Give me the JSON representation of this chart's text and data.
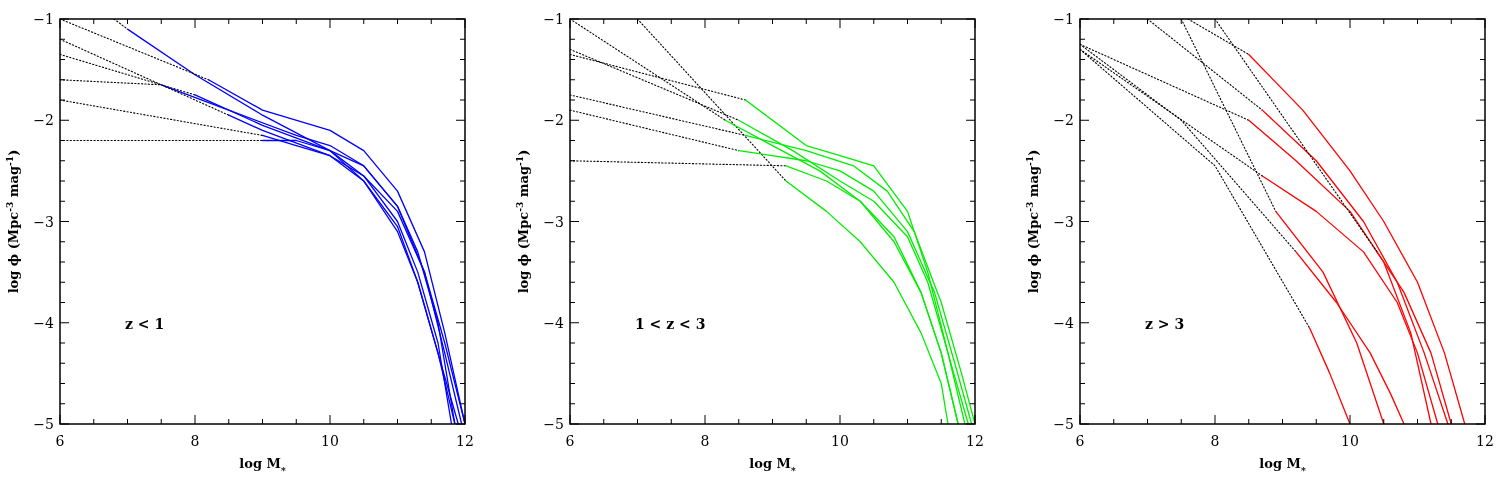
{
  "chart_data": [
    {
      "type": "line",
      "xlabel": "log M$_{*}$",
      "ylabel": "log ϕ (Mpc$^{-3}$ mag$^{-1}$)",
      "annotations": [
        "z < 1"
      ],
      "xlim": [
        6,
        12
      ],
      "ylim": [
        -5,
        -1
      ],
      "xticks": [
        6,
        {
          "value": 6.5,
          "label": null
        },
        {
          "value": 7,
          "label": null
        },
        {
          "value": 7.5,
          "label": null
        },
        8,
        {
          "value": 8.5,
          "label": null
        },
        {
          "value": 9,
          "label": null
        },
        {
          "value": 9.5,
          "label": null
        },
        10,
        {
          "value": 10.5,
          "label": null
        },
        {
          "value": 11,
          "label": null
        },
        {
          "value": 11.5,
          "label": null
        },
        12
      ],
      "yticks": [
        -5,
        {
          "value": -4.8,
          "label": null
        },
        {
          "value": -4.6,
          "label": null
        },
        {
          "value": -4.4,
          "label": null
        },
        {
          "value": -4.2,
          "label": null
        },
        -4,
        {
          "value": -3.8,
          "label": null
        },
        {
          "value": -3.6,
          "label": null
        },
        {
          "value": -3.4,
          "label": null
        },
        {
          "value": -3.2,
          "label": null
        },
        -3,
        {
          "value": -2.8,
          "label": null
        },
        {
          "value": -2.6,
          "label": null
        },
        {
          "value": -2.4,
          "label": null
        },
        {
          "value": -2.2,
          "label": null
        },
        -2,
        {
          "value": -1.8,
          "label": null
        },
        {
          "value": -1.6,
          "label": null
        },
        {
          "value": -1.4,
          "label": null
        },
        {
          "value": -1.2,
          "label": null
        },
        -1
      ],
      "series": [
        {
          "color": "#000000",
          "line_style": "dotted",
          "x": [
            6.8,
            7
          ],
          "values": [
            -1.0,
            -1.1
          ]
        },
        {
          "color": "#0000ff",
          "line_style": "solid",
          "x": [
            7,
            8,
            9,
            10,
            10.5,
            11,
            11.3,
            11.6,
            11.9
          ],
          "values": [
            -1.1,
            -1.55,
            -1.95,
            -2.3,
            -2.6,
            -3.1,
            -3.6,
            -4.3,
            -5
          ]
        },
        {
          "color": "#000000",
          "line_style": "dotted",
          "x": [
            6,
            8
          ],
          "values": [
            -1.35,
            -1.75
          ]
        },
        {
          "color": "#0000ff",
          "line_style": "solid",
          "x": [
            8,
            9,
            10,
            10.5,
            11,
            11.3,
            11.6,
            11.8
          ],
          "values": [
            -1.75,
            -2.05,
            -2.3,
            -2.55,
            -3.0,
            -3.5,
            -4.2,
            -5
          ]
        },
        {
          "color": "#000000",
          "line_style": "dotted",
          "x": [
            6,
            7.5
          ],
          "values": [
            -1.6,
            -1.65
          ]
        },
        {
          "color": "#0000ff",
          "line_style": "solid",
          "x": [
            7.5,
            8.5,
            9.5,
            10,
            10.5,
            11,
            11.4,
            11.7,
            11.95
          ],
          "values": [
            -1.65,
            -1.9,
            -2.15,
            -2.25,
            -2.45,
            -2.85,
            -3.5,
            -4.3,
            -5
          ]
        },
        {
          "color": "#000000",
          "line_style": "dotted",
          "x": [
            6,
            9
          ],
          "values": [
            -2.2,
            -2.2
          ]
        },
        {
          "color": "#0000ff",
          "line_style": "solid",
          "x": [
            9,
            9.5,
            10,
            10.5,
            11,
            11.3,
            11.6,
            11.85
          ],
          "values": [
            -2.2,
            -2.2,
            -2.3,
            -2.45,
            -2.85,
            -3.3,
            -4.0,
            -5
          ]
        },
        {
          "color": "#000000",
          "line_style": "dotted",
          "x": [
            6,
            9
          ],
          "values": [
            -1.8,
            -2.15
          ]
        },
        {
          "color": "#0000ff",
          "line_style": "solid",
          "x": [
            9,
            9.5,
            10,
            10.5,
            11,
            11.4,
            11.7,
            12
          ],
          "values": [
            -2.15,
            -2.25,
            -2.35,
            -2.55,
            -2.9,
            -3.5,
            -4.2,
            -5
          ]
        },
        {
          "color": "#000000",
          "line_style": "dotted",
          "x": [
            6,
            8.2
          ],
          "values": [
            -1.0,
            -1.6
          ]
        },
        {
          "color": "#0000ff",
          "line_style": "solid",
          "x": [
            8.2,
            9,
            10,
            10.5,
            11,
            11.4,
            11.7,
            12
          ],
          "values": [
            -1.6,
            -1.9,
            -2.1,
            -2.3,
            -2.7,
            -3.3,
            -4.1,
            -5
          ]
        },
        {
          "color": "#000000",
          "line_style": "dotted",
          "x": [
            6,
            8.5
          ],
          "values": [
            -1.2,
            -1.95
          ]
        },
        {
          "color": "#0000ff",
          "line_style": "solid",
          "x": [
            8.5,
            9,
            10,
            10.5,
            11,
            11.3,
            11.6,
            11.85
          ],
          "values": [
            -1.95,
            -2.1,
            -2.35,
            -2.6,
            -3.05,
            -3.6,
            -4.3,
            -5
          ]
        }
      ]
    },
    {
      "type": "line",
      "xlabel": "log M$_{*}$",
      "ylabel": "log ϕ (Mpc$^{-3}$ mag$^{-1}$)",
      "annotations": [
        "1 < z < 3"
      ],
      "xlim": [
        6,
        12
      ],
      "ylim": [
        -5,
        -1
      ],
      "xticks": [
        6,
        {
          "value": 6.5,
          "label": null
        },
        {
          "value": 7,
          "label": null
        },
        {
          "value": 7.5,
          "label": null
        },
        8,
        {
          "value": 8.5,
          "label": null
        },
        {
          "value": 9,
          "label": null
        },
        {
          "value": 9.5,
          "label": null
        },
        10,
        {
          "value": 10.5,
          "label": null
        },
        {
          "value": 11,
          "label": null
        },
        {
          "value": 11.5,
          "label": null
        },
        12
      ],
      "yticks": [
        -5,
        {
          "value": -4.8,
          "label": null
        },
        {
          "value": -4.6,
          "label": null
        },
        {
          "value": -4.4,
          "label": null
        },
        {
          "value": -4.2,
          "label": null
        },
        -4,
        {
          "value": -3.8,
          "label": null
        },
        {
          "value": -3.6,
          "label": null
        },
        {
          "value": -3.4,
          "label": null
        },
        {
          "value": -3.2,
          "label": null
        },
        -3,
        {
          "value": -2.8,
          "label": null
        },
        {
          "value": -2.6,
          "label": null
        },
        {
          "value": -2.4,
          "label": null
        },
        {
          "value": -2.2,
          "label": null
        },
        -2,
        {
          "value": -1.8,
          "label": null
        },
        {
          "value": -1.6,
          "label": null
        },
        {
          "value": -1.4,
          "label": null
        },
        {
          "value": -1.2,
          "label": null
        },
        -1
      ],
      "series": [
        {
          "color": "#000000",
          "line_style": "dotted",
          "x": [
            6,
            8.6
          ],
          "values": [
            -1.35,
            -1.8
          ]
        },
        {
          "color": "#00ee00",
          "line_style": "solid",
          "x": [
            8.6,
            9.5,
            10,
            10.5,
            11,
            11.3,
            11.6,
            11.85
          ],
          "values": [
            -1.8,
            -2.25,
            -2.35,
            -2.45,
            -2.9,
            -3.5,
            -4.3,
            -5
          ]
        },
        {
          "color": "#000000",
          "line_style": "dotted",
          "x": [
            6,
            9.2
          ],
          "values": [
            -2.4,
            -2.45
          ]
        },
        {
          "color": "#00ee00",
          "line_style": "solid",
          "x": [
            9.2,
            9.8,
            10.3,
            10.8,
            11.2,
            11.5,
            11.75
          ],
          "values": [
            -2.45,
            -2.6,
            -2.8,
            -3.15,
            -3.7,
            -4.3,
            -5
          ]
        },
        {
          "color": "#000000",
          "line_style": "dotted",
          "x": [
            7,
            9.2
          ],
          "values": [
            -1.0,
            -2.6
          ]
        },
        {
          "color": "#00ee00",
          "line_style": "solid",
          "x": [
            9.2,
            9.8,
            10.3,
            10.8,
            11.2,
            11.5,
            11.6
          ],
          "values": [
            -2.6,
            -2.9,
            -3.2,
            -3.6,
            -4.1,
            -4.6,
            -5
          ]
        },
        {
          "color": "#000000",
          "line_style": "dotted",
          "x": [
            6,
            8.5
          ],
          "values": [
            -1.9,
            -2.3
          ]
        },
        {
          "color": "#00ee00",
          "line_style": "solid",
          "x": [
            8.5,
            9.5,
            10,
            10.5,
            11,
            11.4,
            11.7,
            11.95
          ],
          "values": [
            -2.3,
            -2.4,
            -2.5,
            -2.7,
            -3.1,
            -3.7,
            -4.4,
            -5
          ]
        },
        {
          "color": "#000000",
          "line_style": "dotted",
          "x": [
            6,
            8.3
          ],
          "values": [
            -1.0,
            -2.0
          ]
        },
        {
          "color": "#00ee00",
          "line_style": "solid",
          "x": [
            8.3,
            9,
            9.7,
            10.3,
            10.8,
            11.2,
            11.5,
            11.75
          ],
          "values": [
            -2.0,
            -2.25,
            -2.5,
            -2.8,
            -3.2,
            -3.7,
            -4.3,
            -5
          ]
        },
        {
          "color": "#000000",
          "line_style": "dotted",
          "x": [
            6,
            8.5
          ],
          "values": [
            -1.3,
            -2.0
          ]
        },
        {
          "color": "#00ee00",
          "line_style": "solid",
          "x": [
            8.5,
            9.3,
            10,
            10.5,
            11,
            11.3,
            11.6,
            11.9
          ],
          "values": [
            -2.0,
            -2.3,
            -2.6,
            -2.8,
            -3.15,
            -3.6,
            -4.3,
            -5
          ]
        },
        {
          "color": "#000000",
          "line_style": "dotted",
          "x": [
            6,
            8.6
          ],
          "values": [
            -1.75,
            -2.15
          ]
        },
        {
          "color": "#00ee00",
          "line_style": "solid",
          "x": [
            8.6,
            9.5,
            10.2,
            10.7,
            11.1,
            11.5,
            11.8,
            12
          ],
          "values": [
            -2.15,
            -2.3,
            -2.45,
            -2.7,
            -3.1,
            -3.8,
            -4.5,
            -5
          ]
        }
      ]
    },
    {
      "type": "line",
      "xlabel": "log M$_{*}$",
      "ylabel": "log ϕ (Mpc$^{-3}$ mag$^{-1}$)",
      "annotations": [
        "z > 3"
      ],
      "xlim": [
        6,
        12
      ],
      "ylim": [
        -5,
        -1
      ],
      "xticks": [
        6,
        {
          "value": 6.5,
          "label": null
        },
        {
          "value": 7,
          "label": null
        },
        {
          "value": 7.5,
          "label": null
        },
        8,
        {
          "value": 8.5,
          "label": null
        },
        {
          "value": 9,
          "label": null
        },
        {
          "value": 9.5,
          "label": null
        },
        10,
        {
          "value": 10.5,
          "label": null
        },
        {
          "value": 11,
          "label": null
        },
        {
          "value": 11.5,
          "label": null
        },
        12
      ],
      "yticks": [
        -5,
        {
          "value": -4.8,
          "label": null
        },
        {
          "value": -4.6,
          "label": null
        },
        {
          "value": -4.4,
          "label": null
        },
        {
          "value": -4.2,
          "label": null
        },
        -4,
        {
          "value": -3.8,
          "label": null
        },
        {
          "value": -3.6,
          "label": null
        },
        {
          "value": -3.4,
          "label": null
        },
        {
          "value": -3.2,
          "label": null
        },
        -3,
        {
          "value": -2.8,
          "label": null
        },
        {
          "value": -2.6,
          "label": null
        },
        {
          "value": -2.4,
          "label": null
        },
        {
          "value": -2.2,
          "label": null
        },
        -2,
        {
          "value": -1.8,
          "label": null
        },
        {
          "value": -1.6,
          "label": null
        },
        {
          "value": -1.4,
          "label": null
        },
        {
          "value": -1.2,
          "label": null
        },
        -1
      ],
      "series": [
        {
          "color": "#000000",
          "line_style": "dotted",
          "x": [
            7.6,
            8.5
          ],
          "values": [
            -1.0,
            -1.35
          ]
        },
        {
          "color": "#ff0000",
          "line_style": "solid",
          "x": [
            8.5,
            9.3,
            10,
            10.5,
            11,
            11.4,
            11.7
          ],
          "values": [
            -1.35,
            -1.9,
            -2.5,
            -3.0,
            -3.6,
            -4.3,
            -5
          ]
        },
        {
          "color": "#000000",
          "line_style": "dotted",
          "x": [
            7,
            8.7
          ],
          "values": [
            -1.0,
            -1.9
          ]
        },
        {
          "color": "#ff0000",
          "line_style": "solid",
          "x": [
            8.7,
            9.5,
            10.2,
            10.7,
            11.1,
            11.45
          ],
          "values": [
            -1.9,
            -2.4,
            -3.0,
            -3.6,
            -4.3,
            -5
          ]
        },
        {
          "color": "#000000",
          "line_style": "dotted",
          "x": [
            6,
            8.5
          ],
          "values": [
            -1.25,
            -2.0
          ]
        },
        {
          "color": "#ff0000",
          "line_style": "solid",
          "x": [
            8.5,
            9.2,
            10,
            10.5,
            10.9,
            11.2
          ],
          "values": [
            -2.0,
            -2.4,
            -2.9,
            -3.4,
            -4.1,
            -5
          ]
        },
        {
          "color": "#000000",
          "line_style": "dotted",
          "x": [
            6,
            8.7
          ],
          "values": [
            -1.3,
            -2.55
          ]
        },
        {
          "color": "#ff0000",
          "line_style": "solid",
          "x": [
            8.7,
            9.5,
            10.2,
            10.7,
            11.0,
            11.3
          ],
          "values": [
            -2.55,
            -2.9,
            -3.3,
            -3.8,
            -4.3,
            -5
          ]
        },
        {
          "color": "#000000",
          "line_style": "dotted",
          "x": [
            6,
            7.5,
            9.2
          ],
          "values": [
            -1.25,
            -2.0,
            -3.3
          ]
        },
        {
          "color": "#ff0000",
          "line_style": "solid",
          "x": [
            9.2,
            9.8,
            10.3,
            10.6,
            10.8
          ],
          "values": [
            -3.3,
            -3.8,
            -4.3,
            -4.7,
            -5
          ]
        },
        {
          "color": "#000000",
          "line_style": "dotted",
          "x": [
            6,
            8,
            9.4
          ],
          "values": [
            -1.3,
            -2.45,
            -4.05
          ]
        },
        {
          "color": "#ff0000",
          "line_style": "solid",
          "x": [
            9.4,
            9.7,
            10
          ],
          "values": [
            -4.05,
            -4.5,
            -5
          ]
        },
        {
          "color": "#000000",
          "line_style": "dotted",
          "x": [
            7.5,
            8.9
          ],
          "values": [
            -1.0,
            -2.9
          ]
        },
        {
          "color": "#ff0000",
          "line_style": "solid",
          "x": [
            8.9,
            9.6,
            10.1,
            10.5
          ],
          "values": [
            -2.9,
            -3.5,
            -4.2,
            -5
          ]
        },
        {
          "color": "#000000",
          "line_style": "dotted",
          "x": [
            8,
            10.4
          ],
          "values": [
            -1.0,
            -3.3
          ]
        },
        {
          "color": "#ff0000",
          "line_style": "solid",
          "x": [
            10.4,
            10.8,
            11.2,
            11.5
          ],
          "values": [
            -3.3,
            -3.7,
            -4.3,
            -5
          ]
        }
      ]
    }
  ]
}
